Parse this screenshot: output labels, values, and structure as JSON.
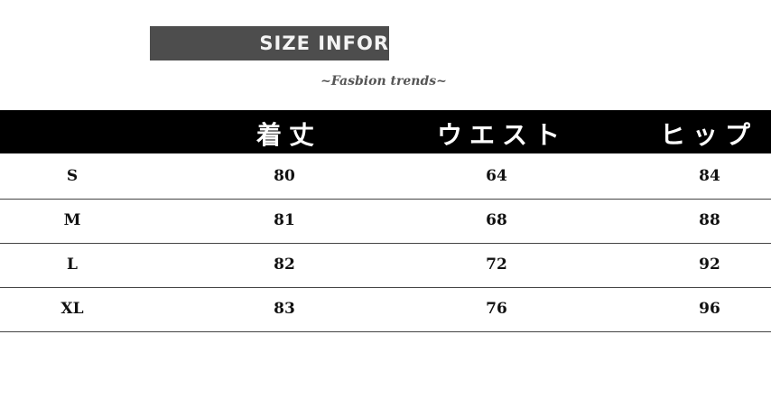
{
  "banner": "SIZE INFOR",
  "subtitle": "~Fasbion trends~",
  "table": {
    "headers": [
      "",
      "着丈",
      "ウエスト",
      "ヒップ"
    ],
    "rows": [
      [
        "S",
        "80",
        "64",
        "84"
      ],
      [
        "M",
        "81",
        "68",
        "88"
      ],
      [
        "L",
        "82",
        "72",
        "92"
      ],
      [
        "XL",
        "83",
        "76",
        "96"
      ]
    ]
  }
}
